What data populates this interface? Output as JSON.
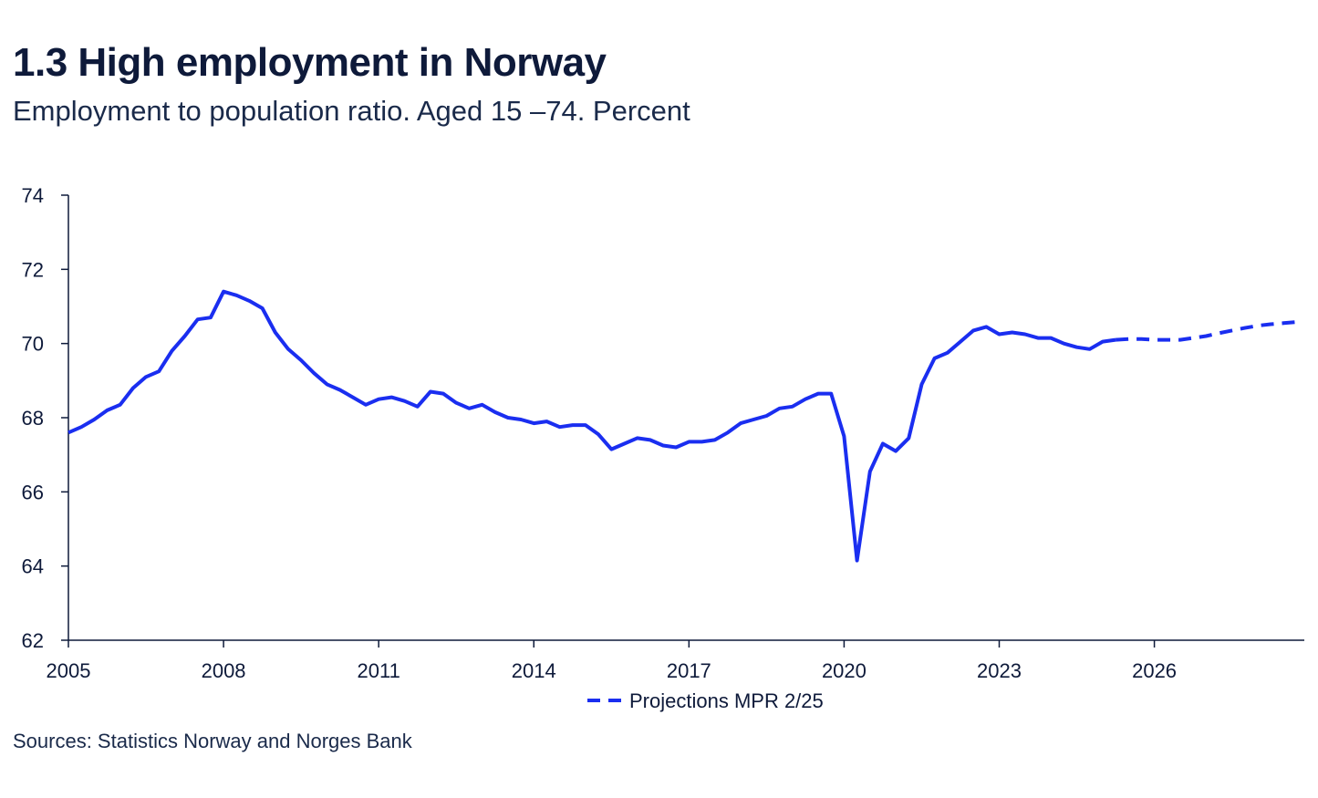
{
  "title": "1.3 High employment in Norway",
  "subtitle": "Employment to population ratio. Aged 15 –74. Percent",
  "sources": "Sources: Statistics Norway and  Norges Bank",
  "colors": {
    "series": "#1a2ef0",
    "axis": "#0e1a3a",
    "text": "#0e1a3a"
  },
  "chart_data": {
    "type": "line",
    "title": "1.3 High employment in Norway",
    "subtitle": "Employment to population ratio. Aged 15 –74. Percent",
    "xlabel": "",
    "ylabel": "",
    "xlim": [
      2005,
      2028.9
    ],
    "ylim": [
      62,
      74
    ],
    "x_ticks": [
      2005,
      2008,
      2011,
      2014,
      2017,
      2020,
      2023,
      2026
    ],
    "y_ticks": [
      62,
      64,
      66,
      68,
      70,
      72,
      74
    ],
    "grid": false,
    "legend_position": "bottom-center",
    "series": [
      {
        "name": "",
        "style": "solid",
        "points": [
          [
            2005.0,
            67.6
          ],
          [
            2005.25,
            67.75
          ],
          [
            2005.5,
            67.95
          ],
          [
            2005.75,
            68.2
          ],
          [
            2006.0,
            68.35
          ],
          [
            2006.25,
            68.8
          ],
          [
            2006.5,
            69.1
          ],
          [
            2006.75,
            69.25
          ],
          [
            2007.0,
            69.8
          ],
          [
            2007.25,
            70.2
          ],
          [
            2007.5,
            70.65
          ],
          [
            2007.75,
            70.7
          ],
          [
            2008.0,
            71.4
          ],
          [
            2008.25,
            71.3
          ],
          [
            2008.5,
            71.15
          ],
          [
            2008.75,
            70.95
          ],
          [
            2009.0,
            70.3
          ],
          [
            2009.25,
            69.85
          ],
          [
            2009.5,
            69.55
          ],
          [
            2009.75,
            69.2
          ],
          [
            2010.0,
            68.9
          ],
          [
            2010.25,
            68.75
          ],
          [
            2010.5,
            68.55
          ],
          [
            2010.75,
            68.35
          ],
          [
            2011.0,
            68.5
          ],
          [
            2011.25,
            68.55
          ],
          [
            2011.5,
            68.45
          ],
          [
            2011.75,
            68.3
          ],
          [
            2012.0,
            68.7
          ],
          [
            2012.25,
            68.65
          ],
          [
            2012.5,
            68.4
          ],
          [
            2012.75,
            68.25
          ],
          [
            2013.0,
            68.35
          ],
          [
            2013.25,
            68.15
          ],
          [
            2013.5,
            68.0
          ],
          [
            2013.75,
            67.95
          ],
          [
            2014.0,
            67.85
          ],
          [
            2014.25,
            67.9
          ],
          [
            2014.5,
            67.75
          ],
          [
            2014.75,
            67.8
          ],
          [
            2015.0,
            67.8
          ],
          [
            2015.25,
            67.55
          ],
          [
            2015.5,
            67.15
          ],
          [
            2015.75,
            67.3
          ],
          [
            2016.0,
            67.45
          ],
          [
            2016.25,
            67.4
          ],
          [
            2016.5,
            67.25
          ],
          [
            2016.75,
            67.2
          ],
          [
            2017.0,
            67.35
          ],
          [
            2017.25,
            67.35
          ],
          [
            2017.5,
            67.4
          ],
          [
            2017.75,
            67.6
          ],
          [
            2018.0,
            67.85
          ],
          [
            2018.25,
            67.95
          ],
          [
            2018.5,
            68.05
          ],
          [
            2018.75,
            68.25
          ],
          [
            2019.0,
            68.3
          ],
          [
            2019.25,
            68.5
          ],
          [
            2019.5,
            68.65
          ],
          [
            2019.75,
            68.65
          ],
          [
            2020.0,
            67.5
          ],
          [
            2020.25,
            64.15
          ],
          [
            2020.5,
            66.55
          ],
          [
            2020.75,
            67.3
          ],
          [
            2021.0,
            67.1
          ],
          [
            2021.25,
            67.45
          ],
          [
            2021.5,
            68.9
          ],
          [
            2021.75,
            69.6
          ],
          [
            2022.0,
            69.75
          ],
          [
            2022.25,
            70.05
          ],
          [
            2022.5,
            70.35
          ],
          [
            2022.75,
            70.45
          ],
          [
            2023.0,
            70.25
          ],
          [
            2023.25,
            70.3
          ],
          [
            2023.5,
            70.25
          ],
          [
            2023.75,
            70.15
          ],
          [
            2024.0,
            70.15
          ],
          [
            2024.25,
            70.0
          ],
          [
            2024.5,
            69.9
          ],
          [
            2024.75,
            69.85
          ],
          [
            2025.0,
            70.05
          ],
          [
            2025.25,
            70.1
          ]
        ]
      },
      {
        "name": "Projections MPR 2/25",
        "style": "dashed",
        "points": [
          [
            2025.25,
            70.1
          ],
          [
            2025.5,
            70.12
          ],
          [
            2025.75,
            70.12
          ],
          [
            2026.0,
            70.1
          ],
          [
            2026.25,
            70.1
          ],
          [
            2026.5,
            70.1
          ],
          [
            2026.75,
            70.15
          ],
          [
            2027.0,
            70.2
          ],
          [
            2027.25,
            70.28
          ],
          [
            2027.5,
            70.35
          ],
          [
            2027.75,
            70.42
          ],
          [
            2028.0,
            70.48
          ],
          [
            2028.25,
            70.52
          ],
          [
            2028.5,
            70.55
          ],
          [
            2028.75,
            70.58
          ]
        ]
      }
    ]
  }
}
